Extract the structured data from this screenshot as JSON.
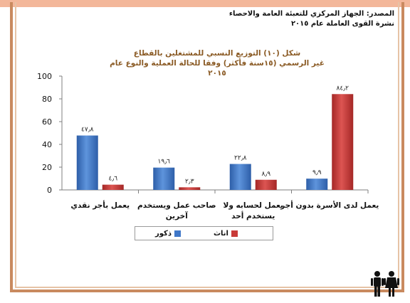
{
  "source": {
    "line1": "المصدر: الجهاز المركزي للتعبئة العامة والاحصاء",
    "line2": "نشرة القوى العاملة عام ٢٠١٥"
  },
  "chart_data": {
    "type": "bar",
    "title_line1": "شكل (١٠) التوزيع النسبي للمشتغلين بالقطاع",
    "title_line2": "غير الرسمي (١٥سنة فأكثر) وفقا للحالة العملية والنوع عام ٢٠١٥",
    "categories": [
      "يعمل لدى الأسرة بدون أجر",
      "يعمل لحسابه ولا يستخدم أحد",
      "صاحب عمل ويستخدم آخرين",
      "يعمل بأجر نقدي"
    ],
    "category_lines": [
      [
        "يعمل لدى الأسرة بدون أجر"
      ],
      [
        "يعمل لحسابه ولا",
        "يستخدم أحد"
      ],
      [
        "صاحب عمل ويستخدم",
        "آخرين"
      ],
      [
        "يعمل بأجر نقدي"
      ]
    ],
    "series": [
      {
        "name": "ذكور",
        "color": "#3f77c8",
        "values": [
          9.9,
          22.8,
          19.6,
          47.8
        ],
        "labels": [
          "٩٫٩",
          "٢٢٫٨",
          "١٩٫٦",
          "٤٧٫٨"
        ]
      },
      {
        "name": "اناث",
        "color": "#c83a38",
        "values": [
          84.2,
          8.9,
          2.3,
          4.6
        ],
        "labels": [
          "٨٤٫٢",
          "٨٫٩",
          "٢٫٣",
          "٤٫٦"
        ]
      }
    ],
    "ylim": [
      0,
      100
    ],
    "yticks": [
      0,
      20,
      40,
      60,
      80,
      100
    ],
    "grid": false,
    "legend_position": "bottom"
  },
  "colors": {
    "frame": "#c98a5f",
    "top_band": "#f3b79a",
    "title": "#8a5a24",
    "male": "#3f77c8",
    "female": "#c83a38"
  },
  "icons": {
    "corner": "family-icon"
  }
}
